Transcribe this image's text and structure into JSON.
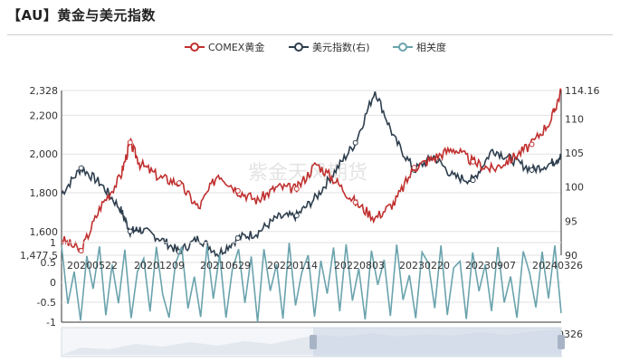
{
  "title": "【AU】黄金与美元指数",
  "watermark": "紫金天风期货",
  "chart_data": [
    {
      "type": "line",
      "title": "",
      "legend": {
        "placement": "top-center",
        "entries": [
          "COMEX黄金",
          "美元指数(右)",
          "相关度"
        ]
      },
      "x_ticks": [
        "20200522",
        "20201209",
        "20210629",
        "20220114",
        "20220803",
        "20230220",
        "20230907",
        "20240326"
      ],
      "y_left_ticks": [
        "1,477.5",
        "1,600",
        "1,800",
        "2,000",
        "2,200",
        "2,328"
      ],
      "y_left_range": [
        1477.5,
        2328
      ],
      "y_right_ticks": [
        "90",
        "95",
        "100",
        "105",
        "110",
        "114.16"
      ],
      "y_right_range": [
        90,
        114.16
      ],
      "grid": true,
      "series": [
        {
          "name": "COMEX黄金",
          "axis": "left",
          "color": "#c0302f",
          "x": [
            "2020-01",
            "2020-03",
            "2020-05",
            "2020-07",
            "2020-08",
            "2020-09",
            "2020-11",
            "2021-01",
            "2021-03",
            "2021-05",
            "2021-07",
            "2021-09",
            "2021-11",
            "2022-01",
            "2022-03",
            "2022-05",
            "2022-07",
            "2022-09",
            "2022-11",
            "2023-01",
            "2023-03",
            "2023-05",
            "2023-07",
            "2023-09",
            "2023-11",
            "2024-01",
            "2024-03",
            "2024-04"
          ],
          "y": [
            1560,
            1500,
            1730,
            1880,
            2060,
            1950,
            1880,
            1850,
            1720,
            1900,
            1810,
            1760,
            1830,
            1820,
            1950,
            1860,
            1750,
            1670,
            1750,
            1930,
            1980,
            2030,
            1960,
            1920,
            1980,
            2050,
            2180,
            2328
          ]
        },
        {
          "name": "美元指数(右)",
          "axis": "right",
          "color": "#2e3e4e",
          "x": [
            "2020-01",
            "2020-03",
            "2020-05",
            "2020-07",
            "2020-08",
            "2020-09",
            "2020-11",
            "2021-01",
            "2021-03",
            "2021-05",
            "2021-07",
            "2021-09",
            "2021-11",
            "2022-01",
            "2022-03",
            "2022-05",
            "2022-07",
            "2022-09",
            "2022-11",
            "2023-01",
            "2023-03",
            "2023-05",
            "2023-07",
            "2023-09",
            "2023-11",
            "2024-01",
            "2024-03",
            "2024-04"
          ],
          "y": [
            99,
            102.8,
            100.5,
            96.8,
            93.5,
            93.8,
            92.5,
            90.5,
            92.5,
            90.2,
            92.5,
            93.3,
            95.5,
            95.8,
            98.5,
            102.5,
            106.5,
            114.16,
            107,
            102.5,
            104.5,
            101.5,
            101,
            105.5,
            104,
            102.5,
            103.5,
            104.5
          ]
        },
        {
          "name": "相关度",
          "axis": "lower",
          "color": "#6aa3ad",
          "y_ticks": [
            "-1",
            "-0.5",
            "0",
            "0.5",
            "1"
          ],
          "y_range": [
            -1,
            1
          ],
          "y": [
            0.9,
            -0.6,
            0.3,
            -0.9,
            0.7,
            -0.2,
            0.95,
            -0.8,
            0.4,
            -0.5,
            0.8,
            -0.95,
            0.2,
            0.6,
            -0.7,
            0.9,
            -0.3,
            -0.9,
            0.5,
            0.85,
            -0.6,
            0.1,
            -0.8,
            0.95,
            -0.4,
            0.7,
            -0.9,
            0.3,
            0.8,
            -0.5,
            0.6,
            -0.95,
            0.9,
            -0.2,
            0.4,
            -0.85,
            0.95,
            -0.6,
            0.2,
            0.7,
            -0.9,
            0.5,
            -0.3,
            0.85,
            -0.7,
            0.9,
            -0.5,
            0.3,
            -0.95,
            0.8,
            -0.1,
            0.6,
            -0.8,
            0.95,
            -0.4,
            0.2,
            -0.9,
            0.7,
            0.5,
            -0.6,
            0.9,
            -0.85,
            0.3,
            0.6,
            -0.95,
            0.8,
            -0.2,
            0.4,
            -0.7,
            0.95,
            -0.5,
            0.1,
            -0.9,
            0.85,
            0.3,
            -0.6,
            0.7,
            -0.4,
            0.9,
            -0.8
          ]
        }
      ]
    }
  ]
}
